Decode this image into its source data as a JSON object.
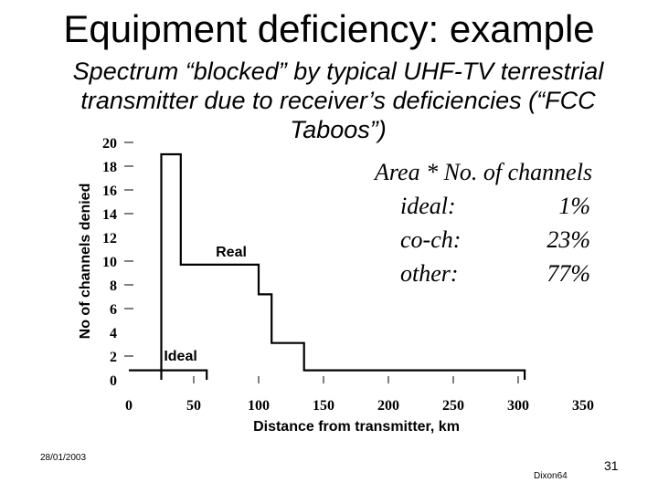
{
  "slide": {
    "title": "Equipment deficiency: example",
    "subtitle": "Spectrum “blocked” by typical UHF-TV terrestrial transmitter due to receiver’s deficiencies (“FCC Taboos”)",
    "date": "28/01/2003",
    "page_number": "31",
    "author": "Dixon64"
  },
  "annotation": {
    "header": "Area * No. of channels",
    "rows": [
      {
        "label": "ideal:",
        "value": "1%"
      },
      {
        "label": "co-ch:",
        "value": "23%"
      },
      {
        "label": "other:",
        "value": "77%"
      }
    ]
  },
  "chart_data": {
    "type": "line",
    "xlabel": "Distance from transmitter, km",
    "ylabel": "No of channels denied",
    "xlim": [
      0,
      350
    ],
    "ylim": [
      0,
      20
    ],
    "x_ticks": [
      "0",
      "50",
      "100",
      "150",
      "200",
      "250",
      "300",
      "350"
    ],
    "y_ticks": [
      "0",
      "2",
      "4",
      "6",
      "8",
      "10",
      "12",
      "14",
      "16",
      "18",
      "20"
    ],
    "grid": false,
    "series": [
      {
        "name": "Real",
        "color": "#000000",
        "x": [
          25,
          25,
          40,
          40,
          100,
          100,
          110,
          110,
          135,
          135,
          305,
          305
        ],
        "y": [
          0,
          19,
          19,
          9.7,
          9.7,
          7.2,
          7.2,
          3.1,
          3.1,
          0.8,
          0.8,
          0
        ]
      },
      {
        "name": "Ideal",
        "color": "#000000",
        "x": [
          0,
          60,
          60
        ],
        "y": [
          0.8,
          0.8,
          0
        ]
      }
    ]
  }
}
